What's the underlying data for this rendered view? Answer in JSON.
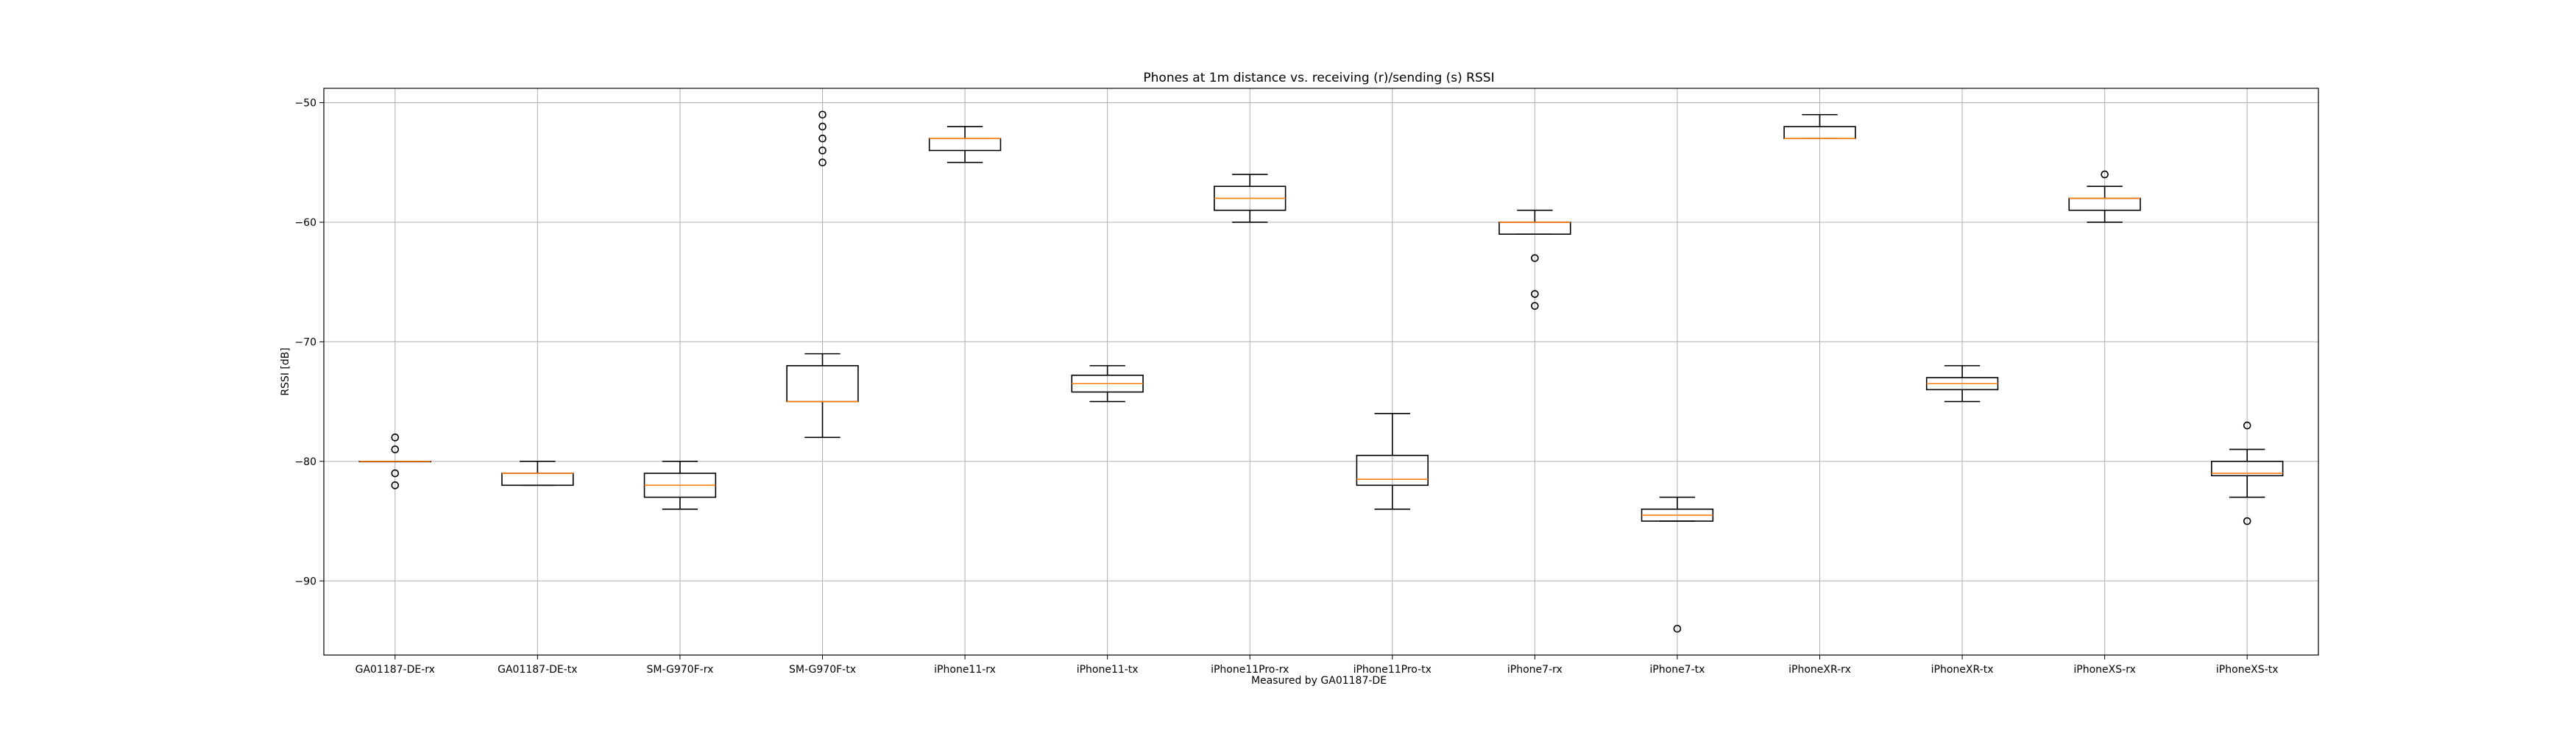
{
  "chart_data": {
    "type": "boxplot",
    "title": "Phones at 1m distance vs. receiving (r)/sending (s) RSSI",
    "xlabel": "Measured by GA01187-DE",
    "ylabel": "RSSI [dB]",
    "ylim": [
      -96.2,
      -48.8
    ],
    "yticks": [
      -50,
      -60,
      -70,
      -80,
      -90
    ],
    "grid": true,
    "colors": {
      "box": "#000000",
      "median": "#ff7f0e",
      "grid": "#b0b0b0"
    },
    "categories": [
      "GA01187-DE-rx",
      "GA01187-DE-tx",
      "SM-G970F-rx",
      "SM-G970F-tx",
      "iPhone11-rx",
      "iPhone11-tx",
      "iPhone11Pro-rx",
      "iPhone11Pro-tx",
      "iPhone7-rx",
      "iPhone7-tx",
      "iPhoneXR-rx",
      "iPhoneXR-tx",
      "iPhoneXS-rx",
      "iPhoneXS-tx"
    ],
    "boxes": [
      {
        "label": "GA01187-DE-rx",
        "whislo": -80,
        "q1": -80,
        "med": -80,
        "q3": -80,
        "whishi": -80,
        "fliers": [
          -78,
          -79,
          -81,
          -82
        ]
      },
      {
        "label": "GA01187-DE-tx",
        "whislo": -82,
        "q1": -82,
        "med": -81,
        "q3": -81,
        "whishi": -80,
        "fliers": []
      },
      {
        "label": "SM-G970F-rx",
        "whislo": -84,
        "q1": -83,
        "med": -82,
        "q3": -81,
        "whishi": -80,
        "fliers": []
      },
      {
        "label": "SM-G970F-tx",
        "whislo": -78,
        "q1": -75,
        "med": -75,
        "q3": -72,
        "whishi": -71,
        "fliers": [
          -51,
          -52,
          -53,
          -54,
          -55
        ]
      },
      {
        "label": "iPhone11-rx",
        "whislo": -55,
        "q1": -54,
        "med": -53,
        "q3": -53,
        "whishi": -52,
        "fliers": []
      },
      {
        "label": "iPhone11-tx",
        "whislo": -75,
        "q1": -74.2,
        "med": -73.5,
        "q3": -72.8,
        "whishi": -72,
        "fliers": []
      },
      {
        "label": "iPhone11Pro-rx",
        "whislo": -60,
        "q1": -59,
        "med": -58,
        "q3": -57,
        "whishi": -56,
        "fliers": []
      },
      {
        "label": "iPhone11Pro-tx",
        "whislo": -84,
        "q1": -82,
        "med": -81.5,
        "q3": -79.5,
        "whishi": -76,
        "fliers": []
      },
      {
        "label": "iPhone7-rx",
        "whislo": -61,
        "q1": -61,
        "med": -60,
        "q3": -60,
        "whishi": -59,
        "fliers": [
          -63,
          -66,
          -67
        ]
      },
      {
        "label": "iPhone7-tx",
        "whislo": -85,
        "q1": -85,
        "med": -84.5,
        "q3": -84,
        "whishi": -83,
        "fliers": [
          -94
        ]
      },
      {
        "label": "iPhoneXR-rx",
        "whislo": -53,
        "q1": -53,
        "med": -53,
        "q3": -52,
        "whishi": -51,
        "fliers": []
      },
      {
        "label": "iPhoneXR-tx",
        "whislo": -75,
        "q1": -74,
        "med": -73.5,
        "q3": -73,
        "whishi": -72,
        "fliers": []
      },
      {
        "label": "iPhoneXS-rx",
        "whislo": -60,
        "q1": -59,
        "med": -58,
        "q3": -58,
        "whishi": -57,
        "fliers": [
          -56
        ]
      },
      {
        "label": "iPhoneXS-tx",
        "whislo": -83,
        "q1": -81.2,
        "med": -81,
        "q3": -80,
        "whishi": -79,
        "fliers": [
          -77,
          -85
        ]
      }
    ]
  }
}
